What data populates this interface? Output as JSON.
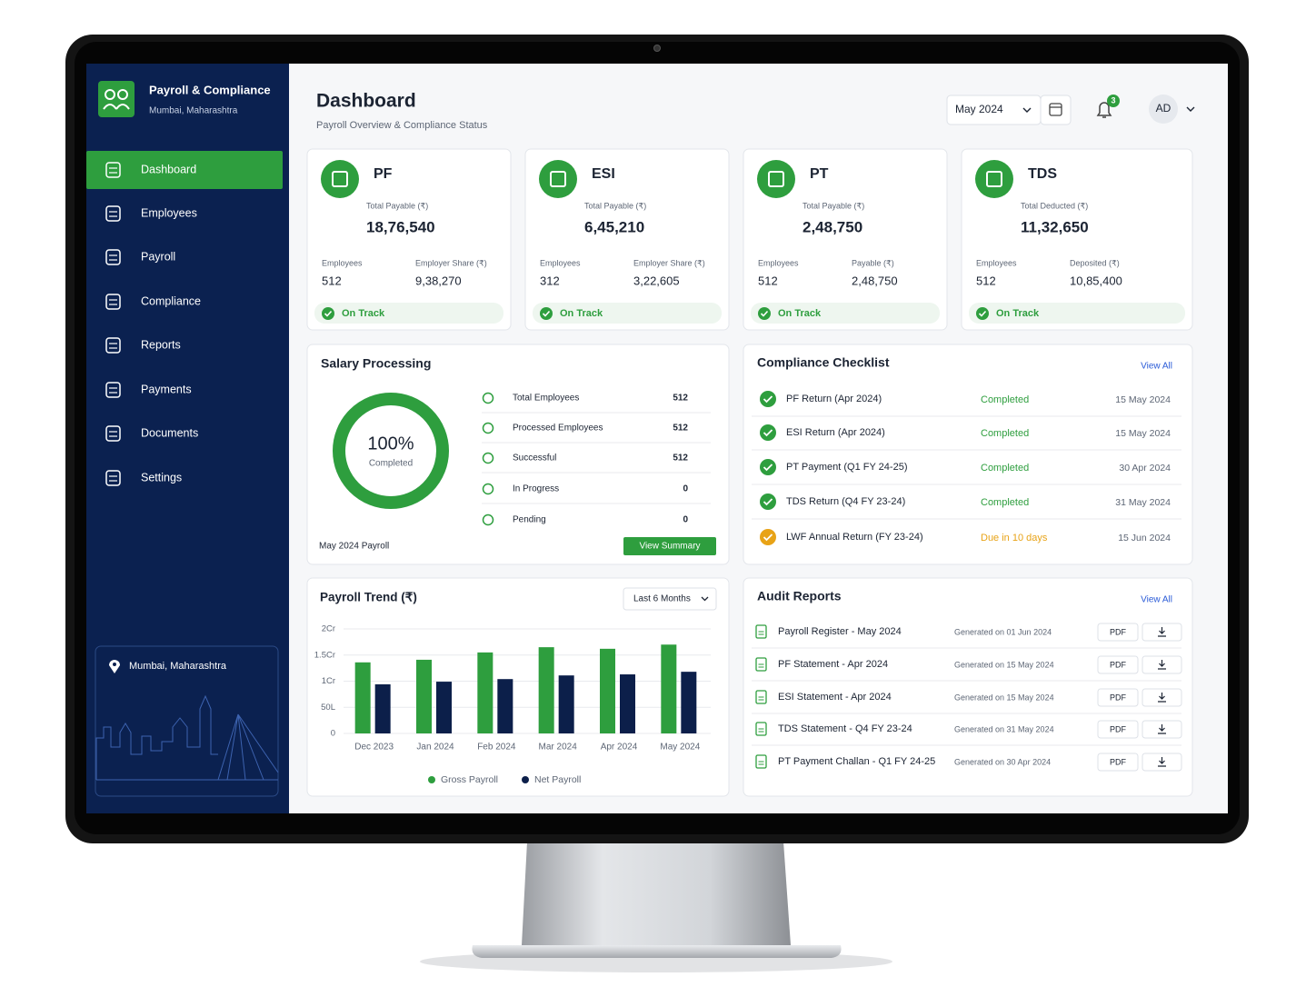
{
  "app": {
    "title": "Payroll & Compliance",
    "location": "Mumbai, Maharashtra"
  },
  "nav": [
    "Dashboard",
    "Employees",
    "Payroll",
    "Compliance",
    "Reports",
    "Payments",
    "Documents",
    "Settings"
  ],
  "active_nav": 0,
  "sidebar_footer": "Mumbai, Maharashtra",
  "header": {
    "title": "Dashboard",
    "subtitle": "Payroll Overview & Compliance Status",
    "period": "May 2024",
    "notifications": "3",
    "avatar": "AD"
  },
  "cards": [
    {
      "name": "PF",
      "total_label": "Total Payable (₹)",
      "total": "18,76,540",
      "left_label": "Employees",
      "left": "512",
      "right_label": "Employer Share (₹)",
      "right": "9,38,270",
      "status": "On Track"
    },
    {
      "name": "ESI",
      "total_label": "Total Payable (₹)",
      "total": "6,45,210",
      "left_label": "Employees",
      "left": "312",
      "right_label": "Employer Share (₹)",
      "right": "3,22,605",
      "status": "On Track"
    },
    {
      "name": "PT",
      "total_label": "Total Payable (₹)",
      "total": "2,48,750",
      "left_label": "Employees",
      "left": "512",
      "right_label": "Payable (₹)",
      "right": "2,48,750",
      "status": "On Track"
    },
    {
      "name": "TDS",
      "total_label": "Total Deducted (₹)",
      "total": "11,32,650",
      "left_label": "Employees",
      "left": "512",
      "right_label": "Deposited (₹)",
      "right": "10,85,400",
      "status": "On Track"
    }
  ],
  "salary_processing": {
    "title": "Salary Processing",
    "percent": 100,
    "percent_label": "100%",
    "status": "Completed",
    "period": "May 2024 Payroll",
    "button": "View Summary",
    "rows": [
      {
        "label": "Total Employees",
        "value": "512"
      },
      {
        "label": "Processed Employees",
        "value": "512"
      },
      {
        "label": "Successful",
        "value": "512"
      },
      {
        "label": "In Progress",
        "value": "0"
      },
      {
        "label": "Pending",
        "value": "0"
      }
    ]
  },
  "compliance_checklist": {
    "title": "Compliance Checklist",
    "view_all": "View All",
    "items": [
      {
        "name": "PF Return (Apr 2024)",
        "status": "Completed",
        "date": "15 May 2024",
        "color": "#2e9e3e"
      },
      {
        "name": "ESI Return (Apr 2024)",
        "status": "Completed",
        "date": "15 May 2024",
        "color": "#2e9e3e"
      },
      {
        "name": "PT Payment (Q1 FY 24-25)",
        "status": "Completed",
        "date": "30 Apr 2024",
        "color": "#2e9e3e"
      },
      {
        "name": "TDS Return (Q4 FY 23-24)",
        "status": "Completed",
        "date": "31 May 2024",
        "color": "#2e9e3e"
      },
      {
        "name": "LWF Annual Return (FY 23-24)",
        "status": "Due in 10 days",
        "date": "15 Jun 2024",
        "color": "#e8a317"
      }
    ]
  },
  "audit_reports": {
    "title": "Audit Reports",
    "view_all": "View All",
    "items": [
      {
        "name": "Payroll Register - May 2024",
        "generated": "Generated on 01 Jun 2024",
        "format": "PDF"
      },
      {
        "name": "PF Statement - Apr 2024",
        "generated": "Generated on 15 May 2024",
        "format": "PDF"
      },
      {
        "name": "ESI Statement - Apr 2024",
        "generated": "Generated on 15 May 2024",
        "format": "PDF"
      },
      {
        "name": "TDS Statement - Q4 FY 23-24",
        "generated": "Generated on 31 May 2024",
        "format": "PDF"
      },
      {
        "name": "PT Payment Challan - Q1 FY 24-25",
        "generated": "Generated on 30 Apr 2024",
        "format": "PDF"
      }
    ]
  },
  "chart_data": {
    "type": "bar",
    "title": "Payroll Trend (₹)",
    "filter": "Last 6 Months",
    "categories": [
      "Dec 2023",
      "Jan 2024",
      "Feb 2024",
      "Mar 2024",
      "Apr 2024",
      "May 2024"
    ],
    "series": [
      {
        "name": "Gross Payroll",
        "color": "#2e9e3e",
        "values": [
          136,
          141,
          155,
          165,
          162,
          170
        ]
      },
      {
        "name": "Net Payroll",
        "color": "#0c1f4a",
        "values": [
          94,
          99,
          104,
          111,
          113,
          118
        ]
      }
    ],
    "ylim": [
      0,
      200
    ],
    "yticks": [
      0,
      {
        "value": 50,
        "label": "50L"
      },
      {
        "value": 100,
        "label": "1Cr"
      },
      {
        "value": 150,
        "label": "1.5Cr"
      },
      {
        "value": 200,
        "label": "2Cr"
      }
    ],
    "grid": true
  }
}
